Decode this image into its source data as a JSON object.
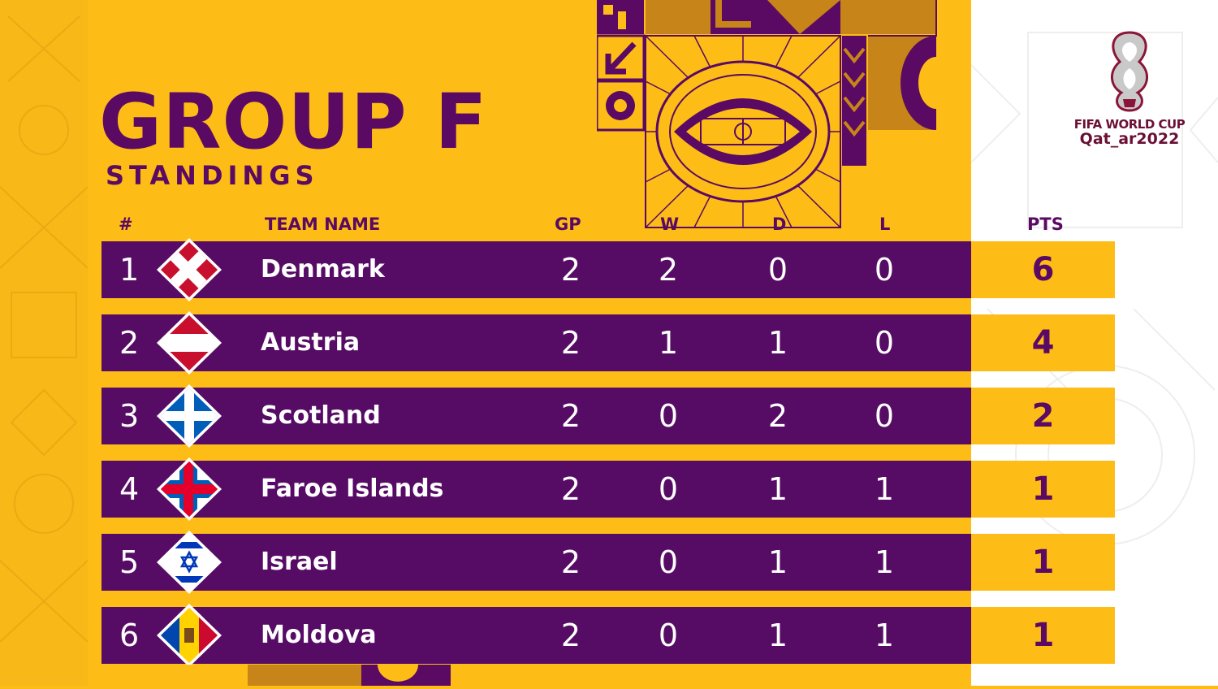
{
  "title": "GROUP F",
  "subtitle": "STANDINGS",
  "headers": {
    "rank": "#",
    "team": "TEAM NAME",
    "gp": "GP",
    "w": "W",
    "d": "D",
    "l": "L",
    "pts": "PTS"
  },
  "logo": {
    "line1": "FIFA WORLD CUP",
    "line2": "Qat_ar2022"
  },
  "colors": {
    "background": "#fdbd16",
    "row": "#560b65",
    "title": "#5a0a63"
  },
  "rows": [
    {
      "pos": "1",
      "team": "Denmark",
      "flag": "denmark-flag-icon",
      "gp": "2",
      "w": "2",
      "d": "0",
      "l": "0",
      "pts": "6"
    },
    {
      "pos": "2",
      "team": "Austria",
      "flag": "austria-flag-icon",
      "gp": "2",
      "w": "1",
      "d": "1",
      "l": "0",
      "pts": "4"
    },
    {
      "pos": "3",
      "team": "Scotland",
      "flag": "scotland-flag-icon",
      "gp": "2",
      "w": "0",
      "d": "2",
      "l": "0",
      "pts": "2"
    },
    {
      "pos": "4",
      "team": "Faroe Islands",
      "flag": "faroe-islands-flag-icon",
      "gp": "2",
      "w": "0",
      "d": "1",
      "l": "1",
      "pts": "1"
    },
    {
      "pos": "5",
      "team": "Israel",
      "flag": "israel-flag-icon",
      "gp": "2",
      "w": "0",
      "d": "1",
      "l": "1",
      "pts": "1"
    },
    {
      "pos": "6",
      "team": "Moldova",
      "flag": "moldova-flag-icon",
      "gp": "2",
      "w": "0",
      "d": "1",
      "l": "1",
      "pts": "1"
    }
  ]
}
